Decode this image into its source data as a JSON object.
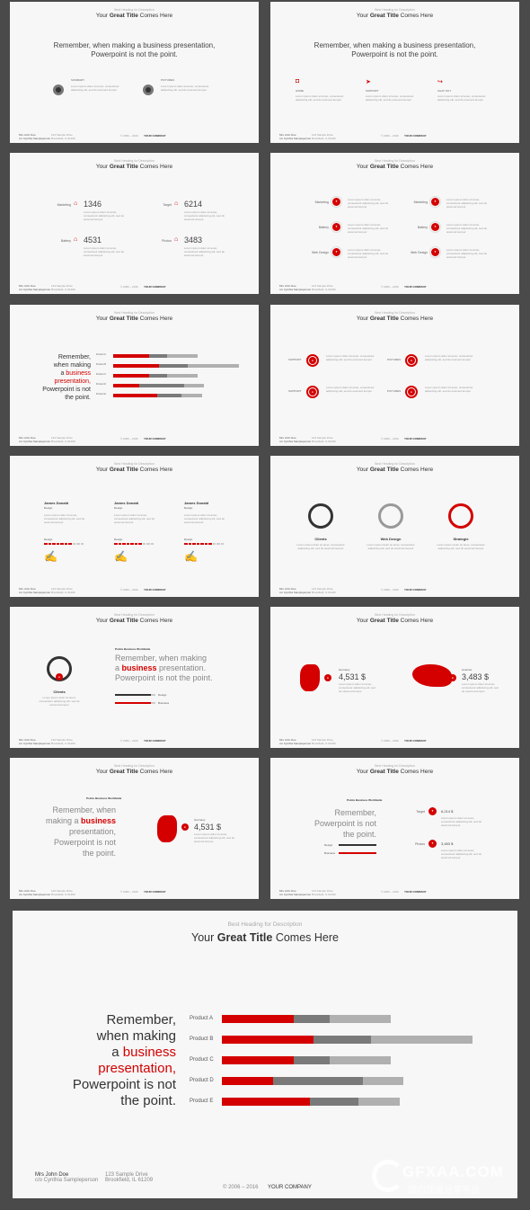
{
  "heading": "Best Heading for Description",
  "title_pre": "Your ",
  "title_bold": "Great Title",
  "title_post": " Comes Here",
  "quote_line1": "Remember, when making a business presentation,",
  "quote_line2": "Powerpoint is not the point.",
  "quote_parts": {
    "a": "Remember,",
    "b": "when making",
    "c": "a",
    "d": "business",
    "e": "presentation,",
    "f": "Powerpoint is not",
    "g": "the point."
  },
  "footer": {
    "name": "Mrs John Doe",
    "name2": "c/o Cynthia Sampleperson",
    "addr1": "123 Sample Drive",
    "addr2": "Brookfield, IL 61209",
    "copy": "© 2006 – 2016",
    "company": "YOUR COMPANY"
  },
  "lorem": "Lorem ipsum dolor sit amet, consectetur adipiscing elit, sed do eiusmod tempor",
  "slide1": {
    "items": [
      "SUMMARY",
      "PICTURES"
    ]
  },
  "slide2": {
    "items": [
      "HOME",
      "SUPPORT",
      "CHAT OUT"
    ]
  },
  "slide3": {
    "items": [
      {
        "label": "Marketing",
        "value": "1346"
      },
      {
        "label": "Target",
        "value": "6214"
      },
      {
        "label": "Battery",
        "value": "4531"
      },
      {
        "label": "Photos",
        "value": "3483"
      }
    ]
  },
  "slide4": {
    "left": [
      "Marketing",
      "Battery",
      "Web Design"
    ],
    "right": [
      "Marketing",
      "Battery",
      "Web Design"
    ]
  },
  "slide6": {
    "items": [
      "SUPPORT",
      "PICTURES",
      "SUPPORT",
      "PICTURES"
    ]
  },
  "slide7": {
    "people": [
      {
        "name": "James Donald",
        "role": "Design",
        "skill": "Design"
      },
      {
        "name": "James Donald",
        "role": "Design",
        "skill": "Design"
      },
      {
        "name": "James Donald",
        "role": "Design",
        "skill": "Design"
      }
    ]
  },
  "slide8": {
    "items": [
      "Clients",
      "Web Design",
      "Strategie"
    ]
  },
  "slide9": {
    "client": "Clients",
    "prefix": "Points Business Worldwide",
    "q1": "Remember, when making",
    "q2a": "a ",
    "q2b": "business",
    "q2c": " presentation.",
    "q3": "Powerpoint is not the point.",
    "legend": [
      "Design",
      "Business"
    ]
  },
  "slide10": {
    "items": [
      {
        "label": "Germany",
        "value": "4,531 $"
      },
      {
        "label": "America",
        "value": "3,483 $"
      }
    ]
  },
  "slide11": {
    "prefix": "Points Business Worldwide",
    "label": "Germany",
    "value": "4,531 $"
  },
  "slide12": {
    "prefix": "Points Business Worldwide",
    "items": [
      {
        "label": "Target",
        "value": "6,214 $"
      },
      {
        "label": "Photos",
        "value": "3,483 $"
      }
    ],
    "legend": [
      "Design",
      "Business"
    ]
  },
  "chart_data": {
    "type": "bar",
    "categories": [
      "Product A",
      "Product B",
      "Product C",
      "Product D",
      "Product E"
    ],
    "series": [
      {
        "values": [
          80,
          102,
          80,
          57,
          98
        ]
      },
      {
        "values": [
          40,
          64,
          40,
          100,
          54
        ]
      },
      {
        "values": [
          68,
          113,
          68,
          45,
          46
        ]
      }
    ],
    "colors": [
      "#d40000",
      "#7a7a7a",
      "#b0b0b0"
    ]
  },
  "watermark": {
    "text": "GFXAA.COM",
    "sub": "国内顶级分享平台"
  }
}
